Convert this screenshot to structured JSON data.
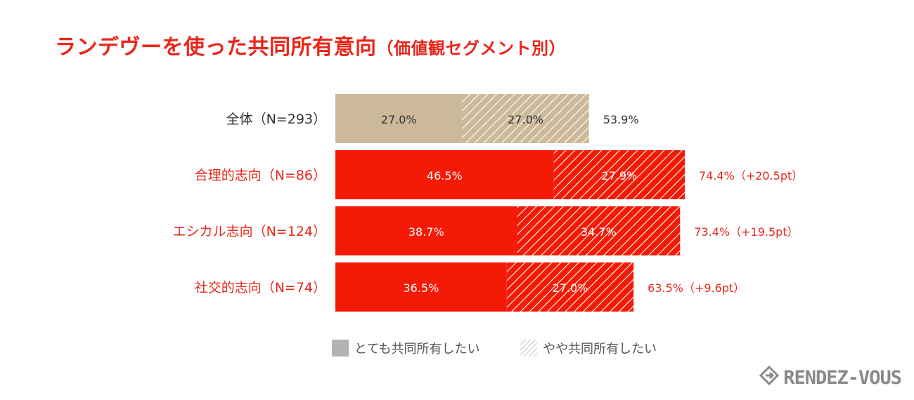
{
  "title": "ランデヴーを使った共同所有意向",
  "subtitle": "（価値観セグメント別）",
  "colors": {
    "total_solid": "#cbb999",
    "segment_solid": "#f41a05",
    "segment_label": "#e8271b",
    "total_label": "#333333",
    "legend_gray": "#b3b3b3"
  },
  "legend": {
    "items": [
      {
        "label": "とても共同所有したい",
        "style": "solid"
      },
      {
        "label": "やや共同所有したい",
        "style": "hatched"
      }
    ]
  },
  "brand": {
    "name": "RENDEZ-VOUS",
    "icon": "diamond-arrow-logo-icon"
  },
  "chart_data": {
    "type": "bar",
    "orientation": "horizontal",
    "stacked": true,
    "title": "ランデヴーを使った共同所有意向（価値観セグメント別）",
    "categories": [
      "全体（N=293）",
      "合理的志向（N=86）",
      "エシカル志向（N=124）",
      "社交的志向（N=74）"
    ],
    "series": [
      {
        "name": "とても共同所有したい",
        "values": [
          27.0,
          46.5,
          38.7,
          36.5
        ],
        "labels": [
          "27.0%",
          "46.5%",
          "38.7%",
          "36.5%"
        ]
      },
      {
        "name": "やや共同所有したい",
        "values": [
          27.0,
          27.9,
          34.7,
          27.0
        ],
        "labels": [
          "27.0%",
          "27.9%",
          "34.7%",
          "27.0%"
        ]
      }
    ],
    "totals": [
      53.9,
      74.4,
      73.4,
      63.5
    ],
    "total_labels": [
      "53.9%",
      "74.4%（+20.5pt）",
      "73.4%（+19.5pt）",
      "63.5%（+9.6pt）"
    ],
    "xlim": [
      0,
      100
    ],
    "xlabel": "",
    "ylabel": "",
    "grid": false,
    "legend_position": "bottom-center"
  }
}
